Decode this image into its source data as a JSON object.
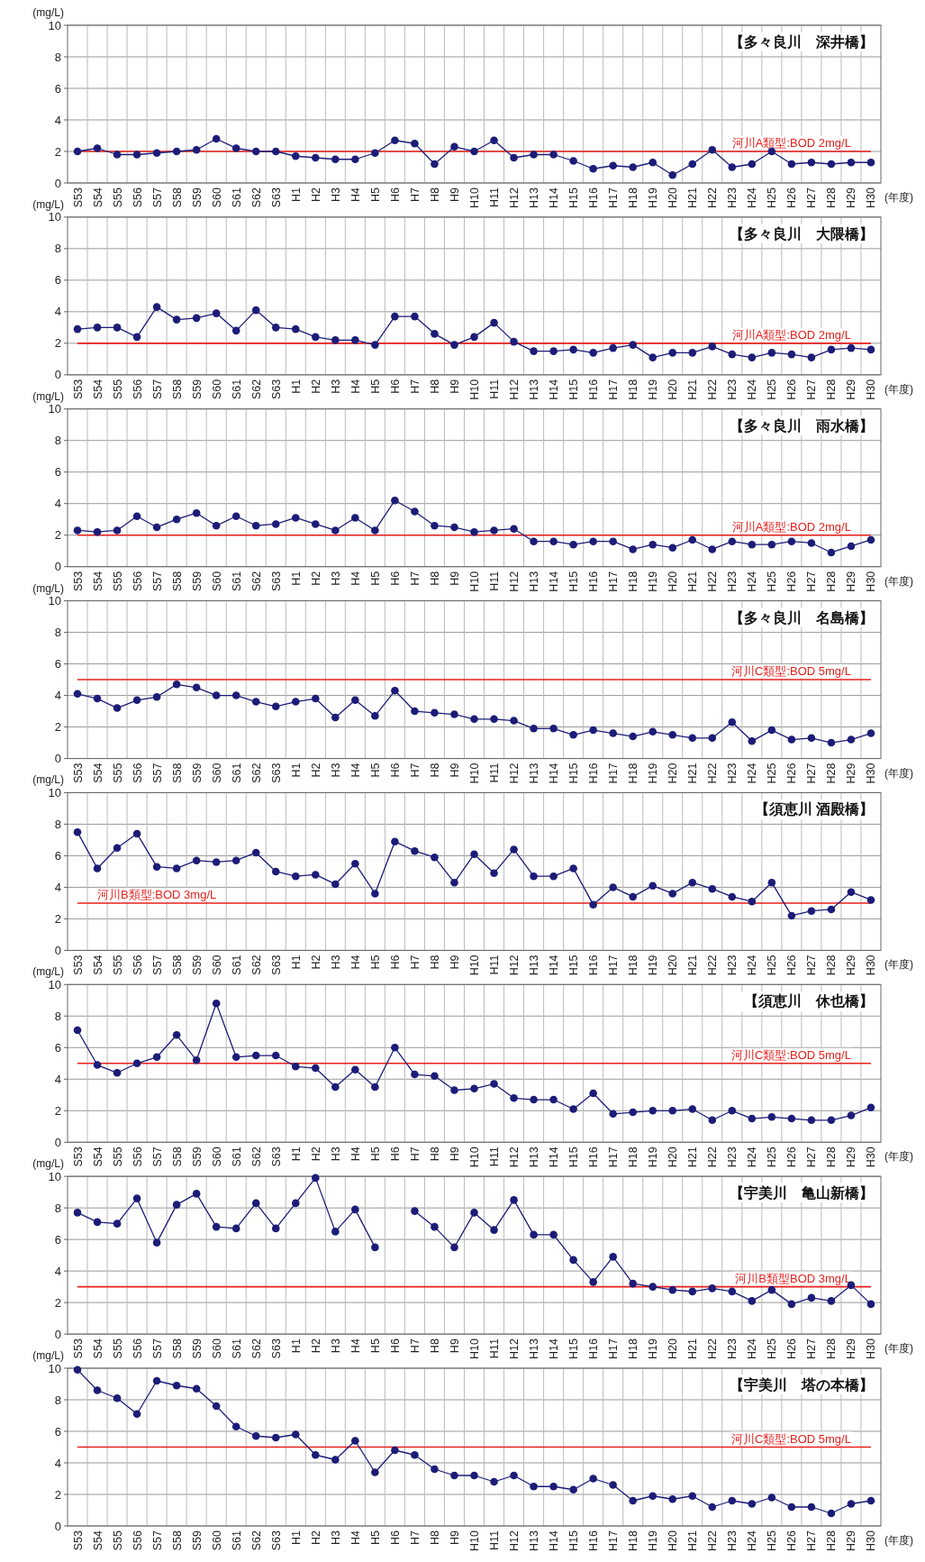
{
  "chart_data": [
    {
      "type": "line",
      "title": "【多々良川　深井橋】",
      "xlabel": "(年度)",
      "ylabel": "(mg/L)",
      "categories": [
        "S53",
        "S54",
        "S55",
        "S56",
        "S57",
        "S58",
        "S59",
        "S60",
        "S61",
        "S62",
        "S63",
        "H1",
        "H2",
        "H3",
        "H4",
        "H5",
        "H6",
        "H7",
        "H8",
        "H9",
        "H10",
        "H11",
        "H12",
        "H13",
        "H14",
        "H15",
        "H16",
        "H17",
        "H18",
        "H19",
        "H20",
        "H21",
        "H22",
        "H23",
        "H24",
        "H25",
        "H26",
        "H27",
        "H28",
        "H29",
        "H30"
      ],
      "series": [
        {
          "color": "#1c1c78",
          "values": [
            2.0,
            2.2,
            1.8,
            1.8,
            1.9,
            2.0,
            2.1,
            2.8,
            2.2,
            2.0,
            2.0,
            1.7,
            1.6,
            1.5,
            1.5,
            1.9,
            2.7,
            2.5,
            1.2,
            2.3,
            2.0,
            2.7,
            1.6,
            1.8,
            1.8,
            1.4,
            0.9,
            1.1,
            1.0,
            1.3,
            0.5,
            1.2,
            2.1,
            1.0,
            1.2,
            2.0,
            1.2,
            1.3,
            1.2,
            1.3,
            1.3
          ]
        }
      ],
      "ylim": [
        0,
        10
      ],
      "yticks": [
        0,
        2,
        4,
        6,
        8,
        10
      ],
      "grid": true,
      "marker": "circle",
      "line_style": "solid",
      "ref_lines": [
        {
          "axis": "y",
          "value": 2,
          "label": "河川A類型:BOD 2mg/L",
          "color": "#e8201c"
        }
      ]
    },
    {
      "type": "line",
      "title": "【多々良川　大隈橋】",
      "xlabel": "(年度)",
      "ylabel": "(mg/L)",
      "categories": [
        "S53",
        "S54",
        "S55",
        "S56",
        "S57",
        "S58",
        "S59",
        "S60",
        "S61",
        "S62",
        "S63",
        "H1",
        "H2",
        "H3",
        "H4",
        "H5",
        "H6",
        "H7",
        "H8",
        "H9",
        "H10",
        "H11",
        "H12",
        "H13",
        "H14",
        "H15",
        "H16",
        "H17",
        "H18",
        "H19",
        "H20",
        "H21",
        "H22",
        "H23",
        "H24",
        "H25",
        "H26",
        "H27",
        "H28",
        "H29",
        "H30"
      ],
      "series": [
        {
          "color": "#1c1c78",
          "values": [
            2.9,
            3.0,
            3.0,
            2.4,
            4.3,
            3.5,
            3.6,
            3.9,
            2.8,
            4.1,
            3.0,
            2.9,
            2.4,
            2.2,
            2.2,
            1.9,
            3.7,
            3.7,
            2.6,
            1.9,
            2.4,
            3.3,
            2.1,
            1.5,
            1.5,
            1.6,
            1.4,
            1.7,
            1.9,
            1.1,
            1.4,
            1.4,
            1.8,
            1.3,
            1.1,
            1.4,
            1.3,
            1.1,
            1.6,
            1.7,
            1.6
          ]
        }
      ],
      "ylim": [
        0,
        10
      ],
      "yticks": [
        0,
        2,
        4,
        6,
        8,
        10
      ],
      "grid": true,
      "marker": "circle",
      "line_style": "solid",
      "ref_lines": [
        {
          "axis": "y",
          "value": 2,
          "label": "河川A類型:BOD 2mg/L",
          "color": "#e8201c"
        }
      ]
    },
    {
      "type": "line",
      "title": "【多々良川　雨水橋】",
      "xlabel": "(年度)",
      "ylabel": "(mg/L)",
      "categories": [
        "S53",
        "S54",
        "S55",
        "S56",
        "S57",
        "S58",
        "S59",
        "S60",
        "S61",
        "S62",
        "S63",
        "H1",
        "H2",
        "H3",
        "H4",
        "H5",
        "H6",
        "H7",
        "H8",
        "H9",
        "H10",
        "H11",
        "H12",
        "H13",
        "H14",
        "H15",
        "H16",
        "H17",
        "H18",
        "H19",
        "H20",
        "H21",
        "H22",
        "H23",
        "H24",
        "H25",
        "H26",
        "H27",
        "H28",
        "H29",
        "H30"
      ],
      "series": [
        {
          "color": "#1c1c78",
          "values": [
            2.3,
            2.2,
            2.3,
            3.2,
            2.5,
            3.0,
            3.4,
            2.6,
            3.2,
            2.6,
            2.7,
            3.1,
            2.7,
            2.3,
            3.1,
            2.3,
            4.2,
            3.5,
            2.6,
            2.5,
            2.2,
            2.3,
            2.4,
            1.6,
            1.6,
            1.4,
            1.6,
            1.6,
            1.1,
            1.4,
            1.2,
            1.7,
            1.1,
            1.6,
            1.4,
            1.4,
            1.6,
            1.5,
            0.9,
            1.3,
            1.7
          ]
        }
      ],
      "ylim": [
        0,
        10
      ],
      "yticks": [
        0,
        2,
        4,
        6,
        8,
        10
      ],
      "grid": true,
      "marker": "circle",
      "line_style": "solid",
      "ref_lines": [
        {
          "axis": "y",
          "value": 2,
          "label": "河川A類型:BOD 2mg/L",
          "color": "#e8201c"
        }
      ]
    },
    {
      "type": "line",
      "title": "【多々良川　名島橋】",
      "xlabel": "(年度)",
      "ylabel": "(mg/L)",
      "categories": [
        "S53",
        "S54",
        "S55",
        "S56",
        "S57",
        "S58",
        "S59",
        "S60",
        "S61",
        "S62",
        "S63",
        "H1",
        "H2",
        "H3",
        "H4",
        "H5",
        "H6",
        "H7",
        "H8",
        "H9",
        "H10",
        "H11",
        "H12",
        "H13",
        "H14",
        "H15",
        "H16",
        "H17",
        "H18",
        "H19",
        "H20",
        "H21",
        "H22",
        "H23",
        "H24",
        "H25",
        "H26",
        "H27",
        "H28",
        "H29",
        "H30"
      ],
      "series": [
        {
          "color": "#1c1c78",
          "values": [
            4.1,
            3.8,
            3.2,
            3.7,
            3.9,
            4.7,
            4.5,
            4.0,
            4.0,
            3.6,
            3.3,
            3.6,
            3.8,
            2.6,
            3.7,
            2.7,
            4.3,
            3.0,
            2.9,
            2.8,
            2.5,
            2.5,
            2.4,
            1.9,
            1.9,
            1.5,
            1.8,
            1.6,
            1.4,
            1.7,
            1.5,
            1.3,
            1.3,
            2.3,
            1.1,
            1.8,
            1.2,
            1.3,
            1.0,
            1.2,
            1.6
          ]
        }
      ],
      "ylim": [
        0,
        10
      ],
      "yticks": [
        0,
        2,
        4,
        6,
        8,
        10
      ],
      "grid": true,
      "marker": "circle",
      "line_style": "solid",
      "ref_lines": [
        {
          "axis": "y",
          "value": 5,
          "label": "河川C類型:BOD 5mg/L",
          "color": "#e8201c"
        }
      ]
    },
    {
      "type": "line",
      "title": "【須恵川 酒殿橋】",
      "xlabel": "(年度)",
      "ylabel": "(mg/L)",
      "categories": [
        "S53",
        "S54",
        "S55",
        "S56",
        "S57",
        "S58",
        "S59",
        "S60",
        "S61",
        "S62",
        "S63",
        "H1",
        "H2",
        "H3",
        "H4",
        "H5",
        "H6",
        "H7",
        "H8",
        "H9",
        "H10",
        "H11",
        "H12",
        "H13",
        "H14",
        "H15",
        "H16",
        "H17",
        "H18",
        "H19",
        "H20",
        "H21",
        "H22",
        "H23",
        "H24",
        "H25",
        "H26",
        "H27",
        "H28",
        "H29",
        "H30"
      ],
      "series": [
        {
          "color": "#1c1c78",
          "values": [
            7.5,
            5.2,
            6.5,
            7.4,
            5.3,
            5.2,
            5.7,
            5.6,
            5.7,
            6.2,
            5.0,
            4.7,
            4.8,
            4.2,
            5.5,
            3.6,
            6.9,
            6.3,
            5.9,
            4.3,
            6.1,
            4.9,
            6.4,
            4.7,
            4.7,
            5.2,
            2.9,
            4.0,
            3.4,
            4.1,
            3.6,
            4.3,
            3.9,
            3.4,
            3.1,
            4.3,
            2.2,
            2.5,
            2.6,
            3.7,
            3.2
          ]
        }
      ],
      "ylim": [
        0,
        10
      ],
      "yticks": [
        0,
        2,
        4,
        6,
        8,
        10
      ],
      "grid": true,
      "marker": "circle",
      "line_style": "solid",
      "ref_lines": [
        {
          "axis": "y",
          "value": 3,
          "label": "河川B類型:BOD 3mg/L",
          "color": "#e8201c"
        }
      ]
    },
    {
      "type": "line",
      "title": "【須恵川　休也橋】",
      "xlabel": "(年度)",
      "ylabel": "(mg/L)",
      "categories": [
        "S53",
        "S54",
        "S55",
        "S56",
        "S57",
        "S58",
        "S59",
        "S60",
        "S61",
        "S62",
        "S63",
        "H1",
        "H2",
        "H3",
        "H4",
        "H5",
        "H6",
        "H7",
        "H8",
        "H9",
        "H10",
        "H11",
        "H12",
        "H13",
        "H14",
        "H15",
        "H16",
        "H17",
        "H18",
        "H19",
        "H20",
        "H21",
        "H22",
        "H23",
        "H24",
        "H25",
        "H26",
        "H27",
        "H28",
        "H29",
        "H30"
      ],
      "series": [
        {
          "color": "#1c1c78",
          "values": [
            7.1,
            4.9,
            4.4,
            5.0,
            5.4,
            6.8,
            5.2,
            8.8,
            5.4,
            5.5,
            5.5,
            4.8,
            4.7,
            3.5,
            4.6,
            3.5,
            6.0,
            4.3,
            4.2,
            3.3,
            3.4,
            3.7,
            2.8,
            2.7,
            2.7,
            2.1,
            3.1,
            1.8,
            1.9,
            2.0,
            2.0,
            2.1,
            1.4,
            2.0,
            1.5,
            1.6,
            1.5,
            1.4,
            1.4,
            1.7,
            2.2
          ]
        }
      ],
      "ylim": [
        0,
        10
      ],
      "yticks": [
        0,
        2,
        4,
        6,
        8,
        10
      ],
      "grid": true,
      "marker": "circle",
      "line_style": "solid",
      "ref_lines": [
        {
          "axis": "y",
          "value": 5,
          "label": "河川C類型:BOD 5mg/L",
          "color": "#e8201c"
        }
      ]
    },
    {
      "type": "line",
      "title": "【宇美川　亀山新橋】",
      "xlabel": "(年度)",
      "ylabel": "(mg/L)",
      "categories": [
        "S53",
        "S54",
        "S55",
        "S56",
        "S57",
        "S58",
        "S59",
        "S60",
        "S61",
        "S62",
        "S63",
        "H1",
        "H2",
        "H3",
        "H4",
        "H5",
        "H6",
        "H7",
        "H8",
        "H9",
        "H10",
        "H11",
        "H12",
        "H13",
        "H14",
        "H15",
        "H16",
        "H17",
        "H18",
        "H19",
        "H20",
        "H21",
        "H22",
        "H23",
        "H24",
        "H25",
        "H26",
        "H27",
        "H28",
        "H29",
        "H30"
      ],
      "series": [
        {
          "color": "#1c1c78",
          "values": [
            7.7,
            7.1,
            7.0,
            8.6,
            5.8,
            8.2,
            8.9,
            6.8,
            6.7,
            8.3,
            6.7,
            8.3,
            9.9,
            6.5,
            7.9,
            5.5,
            null,
            7.8,
            6.8,
            5.5,
            7.7,
            6.6,
            8.5,
            6.3,
            6.3,
            4.7,
            3.3,
            4.9,
            3.2,
            3.0,
            2.8,
            2.7,
            2.9,
            2.7,
            2.1,
            2.8,
            1.9,
            2.3,
            2.1,
            3.1,
            1.9
          ]
        }
      ],
      "ylim": [
        0,
        10
      ],
      "yticks": [
        0,
        2,
        4,
        6,
        8,
        10
      ],
      "grid": true,
      "marker": "circle",
      "line_style": "solid",
      "ref_lines": [
        {
          "axis": "y",
          "value": 3,
          "label": "河川B類型BOD 3mg/L",
          "color": "#e8201c"
        }
      ]
    },
    {
      "type": "line",
      "title": "【宇美川　塔の本橋】",
      "xlabel": "(年度)",
      "ylabel": "(mg/L)",
      "categories": [
        "S53",
        "S54",
        "S55",
        "S56",
        "S57",
        "S58",
        "S59",
        "S60",
        "S61",
        "S62",
        "S63",
        "H1",
        "H2",
        "H3",
        "H4",
        "H5",
        "H6",
        "H7",
        "H8",
        "H9",
        "H10",
        "H11",
        "H12",
        "H13",
        "H14",
        "H15",
        "H16",
        "H17",
        "H18",
        "H19",
        "H20",
        "H21",
        "H22",
        "H23",
        "H24",
        "H25",
        "H26",
        "H27",
        "H28",
        "H29",
        "H30"
      ],
      "series": [
        {
          "color": "#1c1c78",
          "values": [
            9.9,
            8.6,
            8.1,
            7.1,
            9.2,
            8.9,
            8.7,
            7.6,
            6.3,
            5.7,
            5.6,
            5.8,
            4.5,
            4.2,
            5.4,
            3.4,
            4.8,
            4.5,
            3.6,
            3.2,
            3.2,
            2.8,
            3.2,
            2.5,
            2.5,
            2.3,
            3.0,
            2.6,
            1.6,
            1.9,
            1.7,
            1.9,
            1.2,
            1.6,
            1.4,
            1.8,
            1.2,
            1.2,
            0.8,
            1.4,
            1.6
          ]
        }
      ],
      "ylim": [
        0,
        10
      ],
      "yticks": [
        0,
        2,
        4,
        6,
        8,
        10
      ],
      "grid": true,
      "marker": "circle",
      "line_style": "solid",
      "ref_lines": [
        {
          "axis": "y",
          "value": 5,
          "label": "河川C類型:BOD 5mg/L",
          "color": "#e8201c"
        }
      ]
    }
  ]
}
